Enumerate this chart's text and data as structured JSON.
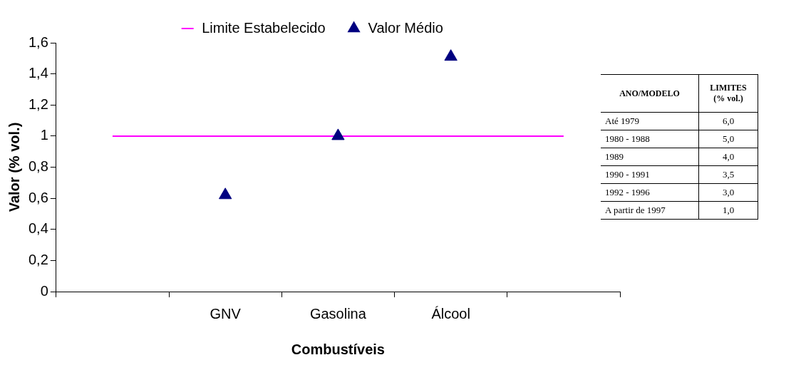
{
  "chart_data": [
    {
      "type": "scatter",
      "xlabel": "Combustíveis",
      "ylabel": "Valor (% vol.)",
      "categories": [
        null,
        "GNV",
        "Gasolina",
        "Álcool",
        null
      ],
      "series": [
        {
          "name": "Limite Estabelecido",
          "type": "line",
          "color": "#ff00ff",
          "values": [
            1,
            1,
            1,
            1,
            1
          ],
          "marker": "none"
        },
        {
          "name": "Valor Médio",
          "type": "scatter",
          "color": "#000080",
          "values": [
            null,
            0.62,
            1.0,
            1.51,
            null
          ],
          "marker": "triangle"
        }
      ],
      "ylim": [
        0,
        1.6
      ],
      "yticks": [
        0,
        {
          "value": 0.2,
          "label": "0,2"
        },
        {
          "value": 0.4,
          "label": "0,4"
        },
        {
          "value": 0.6,
          "label": "0,6"
        },
        {
          "value": 0.8,
          "label": "0,8"
        },
        1,
        {
          "value": 1.2,
          "label": "1,2"
        },
        {
          "value": 1.4,
          "label": "1,4"
        },
        {
          "value": 1.6,
          "label": "1,6"
        }
      ],
      "grid": false,
      "legend": "top"
    },
    {
      "type": "other",
      "categories": [
        "ANO/MODELO",
        "LIMITES (% vol.)"
      ],
      "cell_labels": [
        [
          "Até 1979",
          "6,0"
        ],
        [
          "1980 - 1988",
          "5,0"
        ],
        [
          "1989",
          "4,0"
        ],
        [
          "1990 - 1991",
          "3,5"
        ],
        [
          "1992 - 1996",
          "3,0"
        ],
        [
          "A partir de 1997",
          "1,0"
        ]
      ]
    }
  ]
}
